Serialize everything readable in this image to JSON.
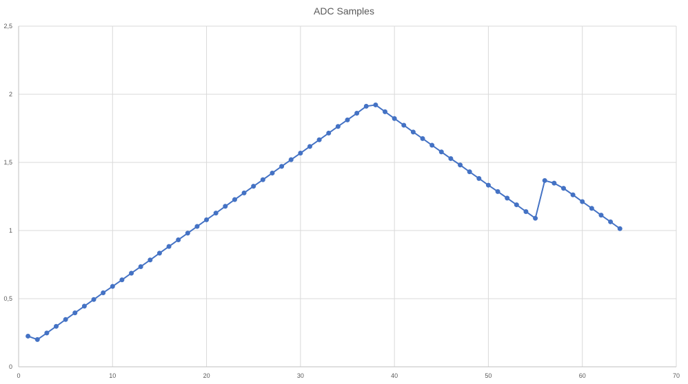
{
  "chart_data": {
    "type": "line",
    "title": "ADC Samples",
    "xlabel": "",
    "ylabel": "",
    "xlim": [
      0,
      70
    ],
    "ylim": [
      0,
      2.5
    ],
    "x_ticks": [
      "0",
      "10",
      "20",
      "30",
      "40",
      "50",
      "60",
      "70"
    ],
    "x_tick_values": [
      0,
      10,
      20,
      30,
      40,
      50,
      60,
      70
    ],
    "y_ticks": [
      "0",
      "0,5",
      "1",
      "1,5",
      "2",
      "2,5"
    ],
    "y_tick_values": [
      0,
      0.5,
      1,
      1.5,
      2,
      2.5
    ],
    "grid": true,
    "legend": "none",
    "series_color": "#4472c4",
    "series": [
      {
        "x": [
          1,
          2,
          3,
          4,
          5,
          6,
          7,
          8,
          9,
          10,
          11,
          12,
          13,
          14,
          15,
          16,
          17,
          18,
          19,
          20,
          21,
          22,
          23,
          24,
          25,
          26,
          27,
          28,
          29,
          30,
          31,
          32,
          33,
          34,
          35,
          36,
          37,
          38,
          39,
          40,
          41,
          42,
          43,
          44,
          45,
          46,
          47,
          48,
          49,
          50,
          51,
          52,
          53,
          54,
          55,
          56,
          57,
          58,
          59,
          60,
          61,
          62,
          63,
          64
        ],
        "values": [
          0.225,
          0.2,
          0.248,
          0.297,
          0.347,
          0.396,
          0.445,
          0.494,
          0.543,
          0.59,
          0.638,
          0.687,
          0.735,
          0.784,
          0.834,
          0.883,
          0.932,
          0.981,
          1.03,
          1.079,
          1.128,
          1.178,
          1.227,
          1.276,
          1.325,
          1.373,
          1.422,
          1.471,
          1.52,
          1.568,
          1.617,
          1.666,
          1.715,
          1.764,
          1.812,
          1.861,
          1.912,
          1.922,
          1.872,
          1.822,
          1.773,
          1.723,
          1.675,
          1.626,
          1.577,
          1.528,
          1.481,
          1.431,
          1.382,
          1.333,
          1.286,
          1.238,
          1.189,
          1.139,
          1.09,
          1.367,
          1.348,
          1.31,
          1.262,
          1.212,
          1.163,
          1.113,
          1.064,
          1.014
        ]
      }
    ]
  }
}
